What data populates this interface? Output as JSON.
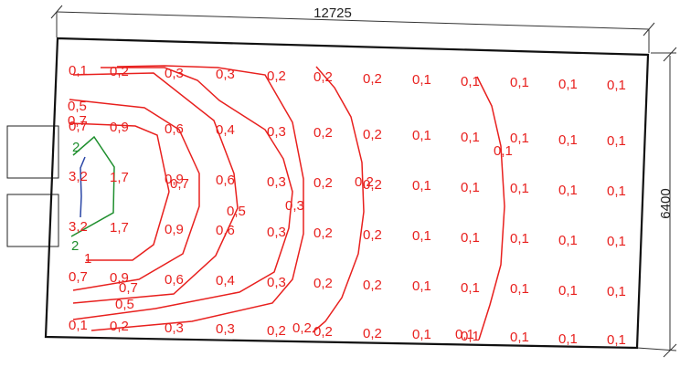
{
  "dimensions": {
    "width_label": "12725",
    "height_label": "6400"
  },
  "grid_values": [
    [
      "0,1",
      "0,2",
      "0,3",
      "0,3",
      "0,2",
      "0,2",
      "0,2",
      "0,1",
      "0,1",
      "0,1",
      "0,1",
      "0,1"
    ],
    [
      "0,7",
      "0,9",
      "0,6",
      "0,4",
      "0,3",
      "0,2",
      "0,2",
      "0,1",
      "0,1",
      "0,1",
      "0,1",
      "0,1"
    ],
    [
      "3,2",
      "1,7",
      "0,9",
      "0,6",
      "0,3",
      "0,2",
      "0,2",
      "0,1",
      "0,1",
      "0,1",
      "0,1",
      "0,1"
    ],
    [
      "3,2",
      "1,7",
      "0,9",
      "0,6",
      "0,3",
      "0,2",
      "0,2",
      "0,1",
      "0,1",
      "0,1",
      "0,1",
      "0,1"
    ],
    [
      "0,7",
      "0,9",
      "0,6",
      "0,4",
      "0,3",
      "0,2",
      "0,2",
      "0,1",
      "0,1",
      "0,1",
      "0,1",
      "0,1"
    ],
    [
      "0,1",
      "0,2",
      "0,3",
      "0,3",
      "0,2",
      "0,2",
      "0,2",
      "0,1",
      "0,1",
      "0,1",
      "0,1",
      "0,1"
    ]
  ],
  "contour_labels": [
    "0,5",
    "0,7",
    "2",
    "0,7",
    "0,5",
    "0,3",
    "0,2",
    "0,1",
    "2",
    "1",
    "0,7",
    "0,5",
    "0,2",
    "0,1"
  ],
  "colors": {
    "high": "#2a46a6",
    "mid": "#1f8f2e",
    "low": "#e8201e",
    "outline": "#111111"
  }
}
